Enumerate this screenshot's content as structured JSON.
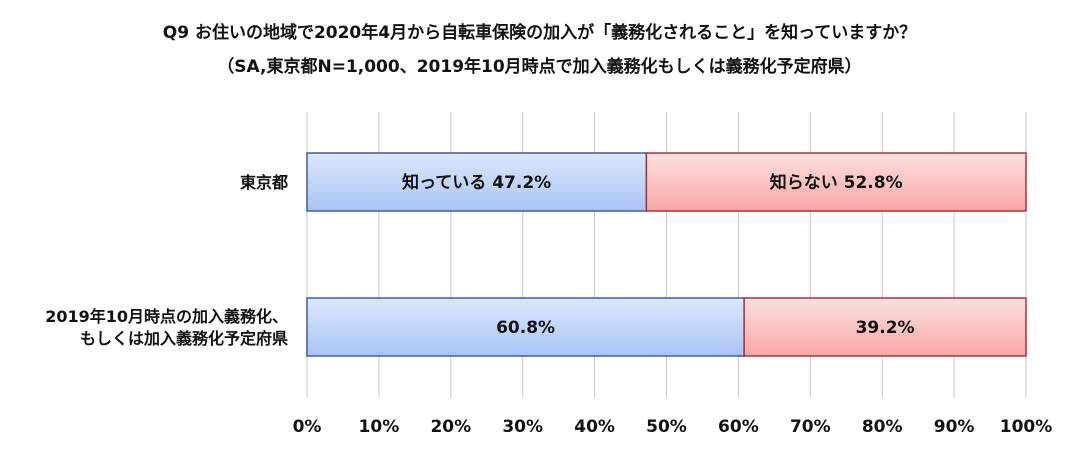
{
  "chart_data": {
    "type": "bar",
    "orientation": "horizontal",
    "stacked": true,
    "percent_stacked": true,
    "title": "Q9 お住いの地域で2020年4月から自転車保険の加入が「義務化されること」を知っていますか？",
    "subtitle": "（SA,東京都N=1,000、2019年10月時点で加入義務化もしくは義務化予定府県）",
    "categories": [
      [
        "東京都"
      ],
      [
        "2019年10月時点の加入義務化、",
        "もしくは加入義務化予定府県"
      ]
    ],
    "series": [
      {
        "name": "知っている",
        "values": [
          47.2,
          60.8
        ],
        "labels": [
          "知っている 47.2%",
          "60.8%"
        ],
        "color": "#c9dcfb"
      },
      {
        "name": "知らない",
        "values": [
          52.8,
          39.2
        ],
        "labels": [
          "知らない 52.8%",
          "39.2%"
        ],
        "color": "#fbc6c6"
      }
    ],
    "xlim": [
      0,
      100
    ],
    "xticks": [
      "0%",
      "10%",
      "20%",
      "30%",
      "40%",
      "50%",
      "60%",
      "70%",
      "80%",
      "90%",
      "100%"
    ],
    "grid": true,
    "legend": "none",
    "border_colors": [
      "#3a5ea8",
      "#b03030"
    ]
  }
}
